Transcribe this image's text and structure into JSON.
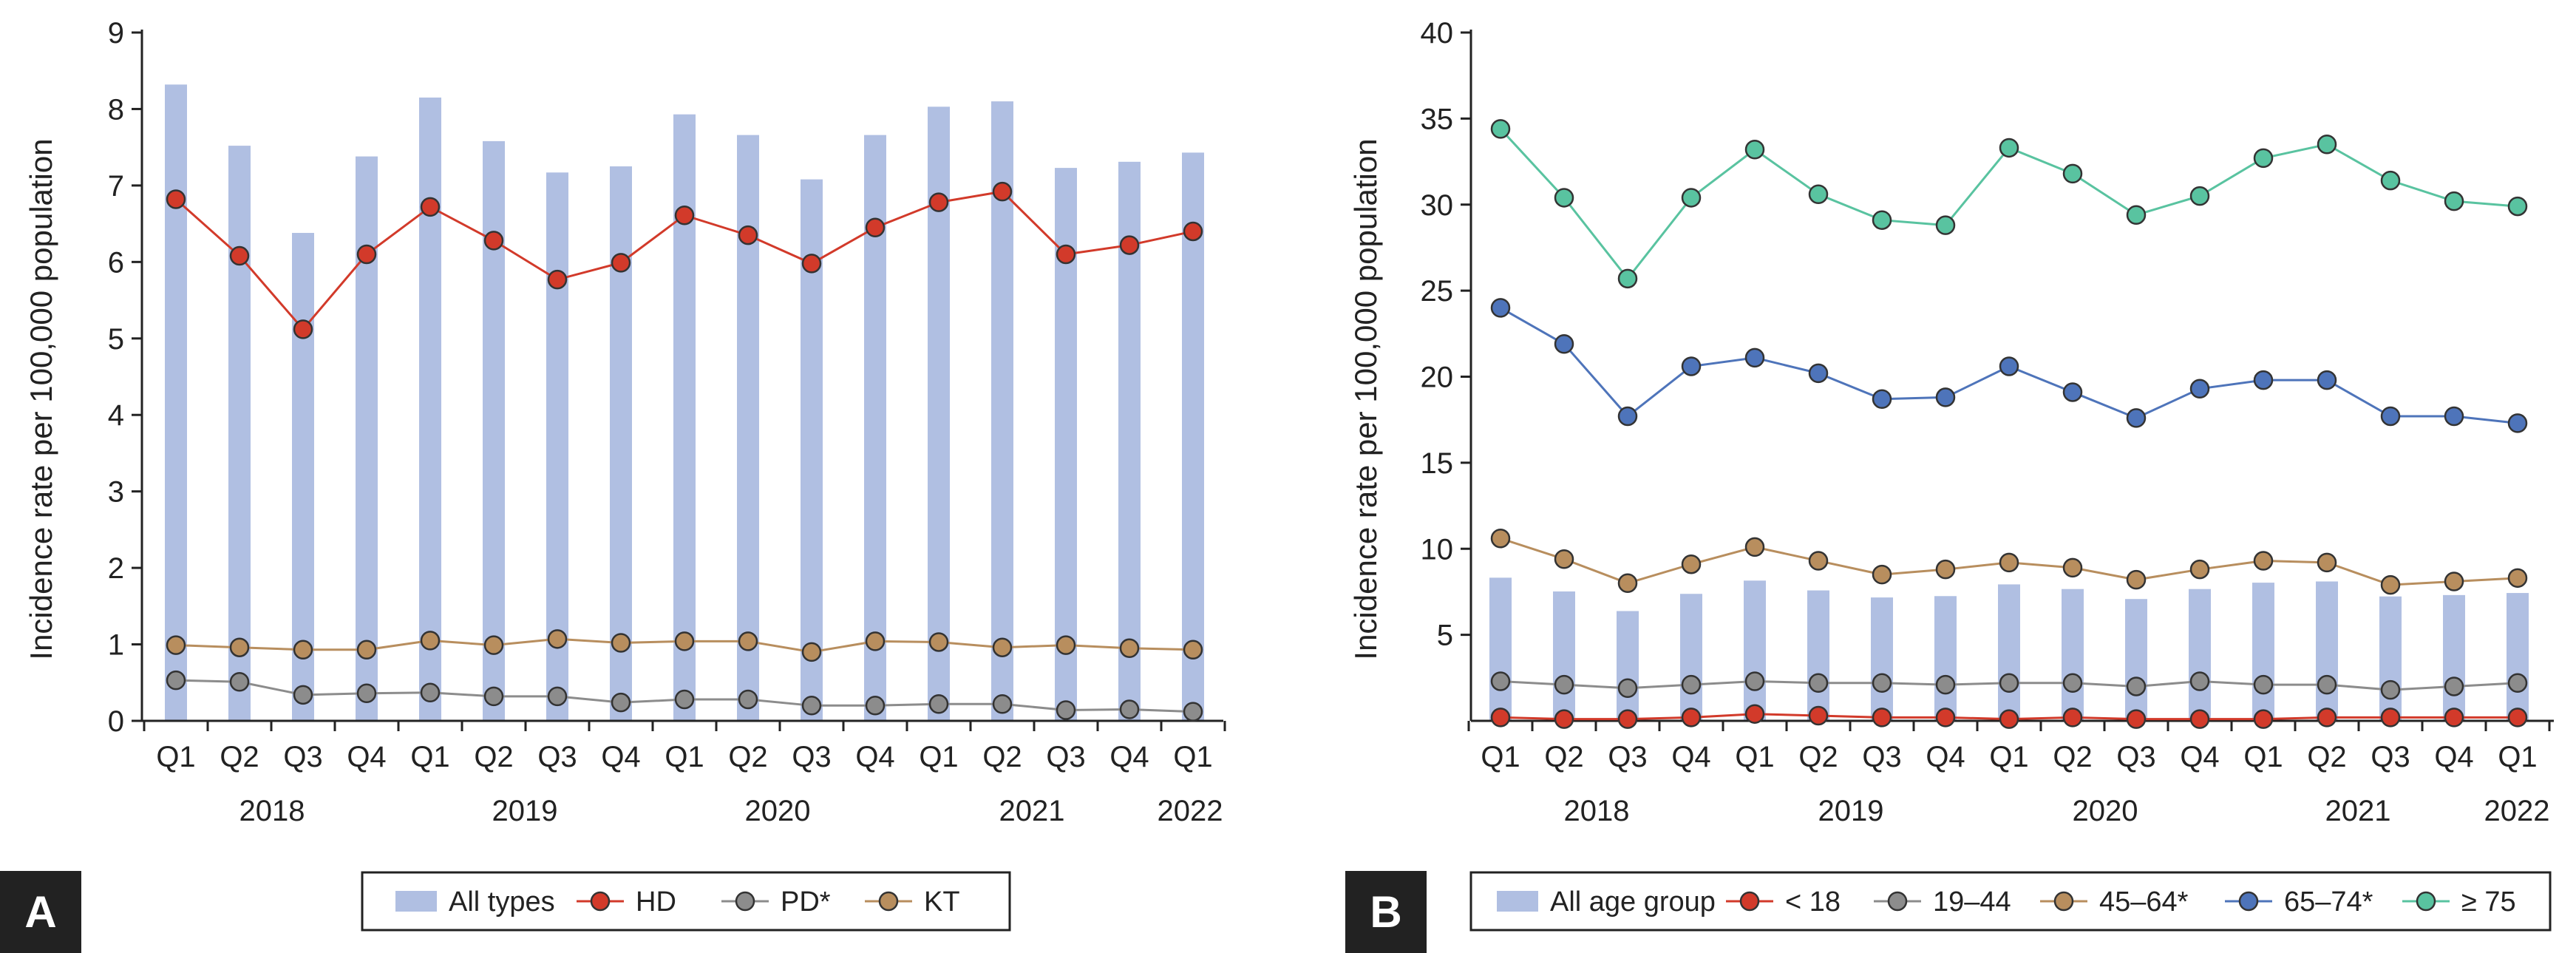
{
  "colors": {
    "bar": "#B0BFE2",
    "hd": "#D23A2A",
    "pd": "#8C8C8C",
    "kt": "#B88E5E",
    "lt18": "#D23A2A",
    "age19_44": "#8C8C8C",
    "age45_64": "#B88E5E",
    "age65_74": "#4E74BA",
    "age75": "#59C3A0",
    "axis": "#222222"
  },
  "chart_data": [
    {
      "panel": "A",
      "type": "bar+line",
      "categories": [
        "Q1",
        "Q2",
        "Q3",
        "Q4",
        "Q1",
        "Q2",
        "Q3",
        "Q4",
        "Q1",
        "Q2",
        "Q3",
        "Q4",
        "Q1",
        "Q2",
        "Q3",
        "Q4",
        "Q1"
      ],
      "year_labels": [
        "2018",
        "2019",
        "2020",
        "2021",
        "2022"
      ],
      "ylabel": "Incidence rate per 100,000 population",
      "ylim": [
        0,
        9
      ],
      "yticks": [
        "0",
        "1",
        "2",
        "3",
        "4",
        "5",
        "6",
        "7",
        "8",
        "9"
      ],
      "bar_series": {
        "name": "All types",
        "values": [
          8.32,
          7.52,
          6.38,
          7.38,
          8.15,
          7.58,
          7.17,
          7.25,
          7.93,
          7.66,
          7.08,
          7.66,
          8.03,
          8.1,
          7.23,
          7.31,
          7.43
        ]
      },
      "line_series": [
        {
          "name": "HD",
          "color_key": "hd",
          "values": [
            6.82,
            6.08,
            5.12,
            6.1,
            6.72,
            6.28,
            5.77,
            5.99,
            6.61,
            6.35,
            5.98,
            6.45,
            6.78,
            6.92,
            6.1,
            6.22,
            6.4
          ]
        },
        {
          "name": "PD*",
          "color_key": "pd",
          "values": [
            0.53,
            0.51,
            0.34,
            0.36,
            0.37,
            0.32,
            0.32,
            0.24,
            0.28,
            0.28,
            0.2,
            0.2,
            0.22,
            0.22,
            0.14,
            0.15,
            0.12
          ]
        },
        {
          "name": "KT",
          "color_key": "kt",
          "values": [
            0.99,
            0.96,
            0.93,
            0.93,
            1.05,
            0.99,
            1.07,
            1.02,
            1.04,
            1.04,
            0.9,
            1.04,
            1.03,
            0.96,
            0.99,
            0.95,
            0.93
          ]
        }
      ],
      "legend": [
        "All types",
        "HD",
        "PD*",
        "KT"
      ]
    },
    {
      "panel": "B",
      "type": "bar+line",
      "categories": [
        "Q1",
        "Q2",
        "Q3",
        "Q4",
        "Q1",
        "Q2",
        "Q3",
        "Q4",
        "Q1",
        "Q2",
        "Q3",
        "Q4",
        "Q1",
        "Q2",
        "Q3",
        "Q4",
        "Q1"
      ],
      "year_labels": [
        "2018",
        "2019",
        "2020",
        "2021",
        "2022"
      ],
      "ylabel": "Incidence rate per 100,000 population",
      "ylim": [
        0,
        40
      ],
      "yticks": [
        "5",
        "10",
        "15",
        "20",
        "25",
        "30",
        "35",
        "40"
      ],
      "bar_series": {
        "name": "All age group",
        "values": [
          8.32,
          7.52,
          6.38,
          7.38,
          8.15,
          7.58,
          7.17,
          7.25,
          7.93,
          7.66,
          7.08,
          7.66,
          8.03,
          8.1,
          7.23,
          7.31,
          7.43
        ]
      },
      "line_series": [
        {
          "name": "< 18",
          "color_key": "lt18",
          "values": [
            0.2,
            0.1,
            0.1,
            0.2,
            0.4,
            0.3,
            0.2,
            0.2,
            0.1,
            0.2,
            0.1,
            0.1,
            0.1,
            0.2,
            0.2,
            0.2,
            0.2
          ]
        },
        {
          "name": "19–44",
          "color_key": "age19_44",
          "values": [
            2.3,
            2.1,
            1.9,
            2.1,
            2.3,
            2.2,
            2.2,
            2.1,
            2.2,
            2.2,
            2.0,
            2.3,
            2.1,
            2.1,
            1.8,
            2.0,
            2.2
          ]
        },
        {
          "name": "45–64*",
          "color_key": "age45_64",
          "values": [
            10.6,
            9.4,
            8.0,
            9.1,
            10.1,
            9.3,
            8.5,
            8.8,
            9.2,
            8.9,
            8.2,
            8.8,
            9.3,
            9.2,
            7.9,
            8.1,
            8.3
          ]
        },
        {
          "name": "65–74*",
          "color_key": "age65_74",
          "values": [
            24.0,
            21.9,
            17.7,
            20.6,
            21.1,
            20.2,
            18.7,
            18.8,
            20.6,
            19.1,
            17.6,
            19.3,
            19.8,
            19.8,
            17.7,
            17.7,
            17.3
          ]
        },
        {
          "name": "≥ 75",
          "color_key": "age75",
          "values": [
            34.4,
            30.4,
            25.7,
            30.4,
            33.2,
            30.6,
            29.1,
            28.8,
            33.3,
            31.8,
            29.4,
            30.5,
            32.7,
            33.5,
            31.4,
            30.2,
            29.9
          ]
        }
      ],
      "legend": [
        "All age group",
        "< 18",
        "19–44",
        "45–64*",
        "65–74*",
        "≥ 75"
      ]
    }
  ]
}
